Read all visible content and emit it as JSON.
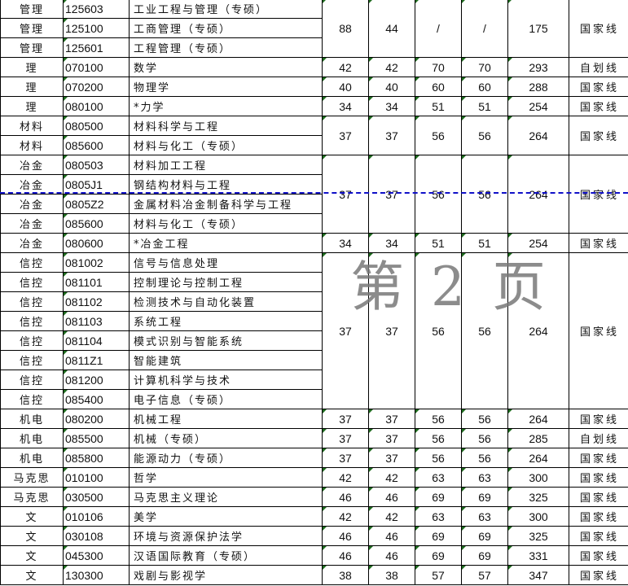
{
  "rows": [
    {
      "cat": "管理",
      "code": "125603",
      "name": "工业工程与管理（专硕）"
    },
    {
      "cat": "管理",
      "code": "125100",
      "name": "工商管理（专硕）"
    },
    {
      "cat": "管理",
      "code": "125601",
      "name": "工程管理（专硕）"
    },
    {
      "cat": "理",
      "code": "070100",
      "name": "数学"
    },
    {
      "cat": "理",
      "code": "070200",
      "name": "物理学"
    },
    {
      "cat": "理",
      "code": "080100",
      "name": "*力学"
    },
    {
      "cat": "材料",
      "code": "080500",
      "name": "材料科学与工程"
    },
    {
      "cat": "材料",
      "code": "085600",
      "name": "材料与化工（专硕）"
    },
    {
      "cat": "冶金",
      "code": "080503",
      "name": "材料加工工程"
    },
    {
      "cat": "冶金",
      "code": "0805J1",
      "name": "钢结构材料与工程"
    },
    {
      "cat": "冶金",
      "code": "0805Z2",
      "name": "金属材料冶金制备科学与工程"
    },
    {
      "cat": "冶金",
      "code": "085600",
      "name": "材料与化工（专硕）"
    },
    {
      "cat": "冶金",
      "code": "080600",
      "name": "*冶金工程"
    },
    {
      "cat": "信控",
      "code": "081002",
      "name": "信号与信息处理"
    },
    {
      "cat": "信控",
      "code": "081101",
      "name": "控制理论与控制工程"
    },
    {
      "cat": "信控",
      "code": "081102",
      "name": "检测技术与自动化装置"
    },
    {
      "cat": "信控",
      "code": "081103",
      "name": "系统工程"
    },
    {
      "cat": "信控",
      "code": "081104",
      "name": "模式识别与智能系统"
    },
    {
      "cat": "信控",
      "code": "0811Z1",
      "name": "智能建筑"
    },
    {
      "cat": "信控",
      "code": "081200",
      "name": "计算机科学与技术"
    },
    {
      "cat": "信控",
      "code": "085400",
      "name": "电子信息（专硕）"
    },
    {
      "cat": "机电",
      "code": "080200",
      "name": "机械工程"
    },
    {
      "cat": "机电",
      "code": "085500",
      "name": "机械（专硕）"
    },
    {
      "cat": "机电",
      "code": "085800",
      "name": "能源动力（专硕）"
    },
    {
      "cat": "马克思",
      "code": "010100",
      "name": "哲学"
    },
    {
      "cat": "马克思",
      "code": "030500",
      "name": "马克思主义理论"
    },
    {
      "cat": "文",
      "code": "010106",
      "name": "美学"
    },
    {
      "cat": "文",
      "code": "030108",
      "name": "环境与资源保护法学"
    },
    {
      "cat": "文",
      "code": "045300",
      "name": "汉语国际教育（专硕）"
    },
    {
      "cat": "文",
      "code": "130300",
      "name": "戏剧与影视学"
    }
  ],
  "scores": [
    {
      "start": 0,
      "span": 3,
      "v": [
        "88",
        "44",
        "/",
        "/",
        "175"
      ],
      "line": "国家线"
    },
    {
      "start": 3,
      "span": 1,
      "v": [
        "42",
        "42",
        "70",
        "70",
        "293"
      ],
      "line": "自划线"
    },
    {
      "start": 4,
      "span": 1,
      "v": [
        "40",
        "40",
        "60",
        "60",
        "288"
      ],
      "line": "国家线"
    },
    {
      "start": 5,
      "span": 1,
      "v": [
        "34",
        "34",
        "51",
        "51",
        "254"
      ],
      "line": "国家线"
    },
    {
      "start": 6,
      "span": 2,
      "v": [
        "37",
        "37",
        "56",
        "56",
        "264"
      ],
      "line": "国家线"
    },
    {
      "start": 8,
      "span": 4,
      "v": [
        "37",
        "37",
        "56",
        "56",
        "264"
      ],
      "line": "国家线"
    },
    {
      "start": 12,
      "span": 1,
      "v": [
        "34",
        "34",
        "51",
        "51",
        "254"
      ],
      "line": "国家线"
    },
    {
      "start": 13,
      "span": 8,
      "v": [
        "37",
        "37",
        "56",
        "56",
        "264"
      ],
      "line": "国家线"
    },
    {
      "start": 21,
      "span": 1,
      "v": [
        "37",
        "37",
        "56",
        "56",
        "264"
      ],
      "line": "国家线"
    },
    {
      "start": 22,
      "span": 1,
      "v": [
        "37",
        "37",
        "56",
        "56",
        "285"
      ],
      "line": "自划线"
    },
    {
      "start": 23,
      "span": 1,
      "v": [
        "37",
        "37",
        "56",
        "56",
        "264"
      ],
      "line": "国家线"
    },
    {
      "start": 24,
      "span": 1,
      "v": [
        "42",
        "42",
        "63",
        "63",
        "300"
      ],
      "line": "国家线"
    },
    {
      "start": 25,
      "span": 1,
      "v": [
        "46",
        "46",
        "69",
        "69",
        "325"
      ],
      "line": "国家线"
    },
    {
      "start": 26,
      "span": 1,
      "v": [
        "42",
        "42",
        "63",
        "63",
        "300"
      ],
      "line": "国家线"
    },
    {
      "start": 27,
      "span": 1,
      "v": [
        "46",
        "46",
        "69",
        "69",
        "325"
      ],
      "line": "国家线"
    },
    {
      "start": 28,
      "span": 1,
      "v": [
        "46",
        "46",
        "69",
        "69",
        "331"
      ],
      "line": "国家线"
    },
    {
      "start": 29,
      "span": 1,
      "v": [
        "38",
        "38",
        "57",
        "57",
        "347"
      ],
      "line": "国家线"
    }
  ],
  "watermark": "第 2 页",
  "colors": {
    "page_break": "#1010c8",
    "text_indicator": "#1e6b1e"
  }
}
